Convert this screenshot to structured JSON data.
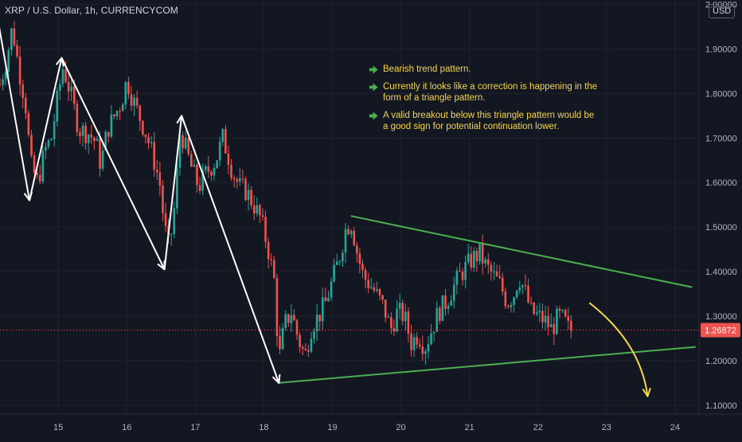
{
  "header": {
    "symbol_title": "XRP / U.S. Dollar, 1h, CURRENCYCOM",
    "currency": "USD"
  },
  "notes": [
    "Bearish trend pattern.",
    "Currently it looks like a correction is happening in the form of a triangle pattern.",
    "A valid breakout below this triangle pattern would be a good sign for potential continuation lower."
  ],
  "colors": {
    "background": "#131722",
    "bull": "#26a69a",
    "bear": "#ef5350",
    "trendline": "#4caf50",
    "note_text": "#f5d547",
    "projection_arrow": "#f5d547",
    "price_tag": "#ef5350",
    "wave_arrows": "#ffffff",
    "note_icon": "#4caf50"
  },
  "chart_data": {
    "type": "candlestick",
    "x_ticks": [
      "15",
      "16",
      "17",
      "18",
      "19",
      "20",
      "21",
      "22",
      "23",
      "24"
    ],
    "y_ticks": [
      "2.00000",
      "1.90000",
      "1.80000",
      "1.70000",
      "1.60000",
      "1.50000",
      "1.40000",
      "1.30000",
      "1.20000",
      "1.10000"
    ],
    "ylim": [
      1.08,
      2.01
    ],
    "xlim": [
      14.15,
      24.35
    ],
    "last_price": 1.26872,
    "last_price_label": "1.26872",
    "price_path": [
      [
        14.15,
        1.82
      ],
      [
        14.25,
        1.88
      ],
      [
        14.33,
        1.95
      ],
      [
        14.42,
        1.86
      ],
      [
        14.52,
        1.78
      ],
      [
        14.6,
        1.64
      ],
      [
        14.7,
        1.6
      ],
      [
        14.8,
        1.67
      ],
      [
        14.9,
        1.7
      ],
      [
        15.0,
        1.8
      ],
      [
        15.07,
        1.86
      ],
      [
        15.18,
        1.8
      ],
      [
        15.3,
        1.72
      ],
      [
        15.45,
        1.71
      ],
      [
        15.55,
        1.69
      ],
      [
        15.62,
        1.64
      ],
      [
        15.72,
        1.72
      ],
      [
        15.82,
        1.75
      ],
      [
        15.92,
        1.78
      ],
      [
        16.0,
        1.83
      ],
      [
        16.08,
        1.79
      ],
      [
        16.18,
        1.75
      ],
      [
        16.28,
        1.71
      ],
      [
        16.38,
        1.66
      ],
      [
        16.48,
        1.6
      ],
      [
        16.55,
        1.5
      ],
      [
        16.62,
        1.45
      ],
      [
        16.7,
        1.55
      ],
      [
        16.78,
        1.72
      ],
      [
        16.85,
        1.68
      ],
      [
        16.95,
        1.63
      ],
      [
        17.05,
        1.59
      ],
      [
        17.15,
        1.62
      ],
      [
        17.3,
        1.65
      ],
      [
        17.4,
        1.7
      ],
      [
        17.48,
        1.66
      ],
      [
        17.55,
        1.62
      ],
      [
        17.65,
        1.59
      ],
      [
        17.75,
        1.58
      ],
      [
        17.85,
        1.55
      ],
      [
        17.95,
        1.52
      ],
      [
        18.05,
        1.46
      ],
      [
        18.15,
        1.38
      ],
      [
        18.22,
        1.2
      ],
      [
        18.3,
        1.28
      ],
      [
        18.4,
        1.31
      ],
      [
        18.5,
        1.25
      ],
      [
        18.6,
        1.21
      ],
      [
        18.7,
        1.28
      ],
      [
        18.8,
        1.3
      ],
      [
        18.9,
        1.33
      ],
      [
        19.0,
        1.38
      ],
      [
        19.1,
        1.43
      ],
      [
        19.2,
        1.5
      ],
      [
        19.28,
        1.51
      ],
      [
        19.35,
        1.45
      ],
      [
        19.45,
        1.39
      ],
      [
        19.6,
        1.36
      ],
      [
        19.75,
        1.32
      ],
      [
        19.85,
        1.27
      ],
      [
        19.95,
        1.31
      ],
      [
        20.05,
        1.3
      ],
      [
        20.15,
        1.24
      ],
      [
        20.25,
        1.26
      ],
      [
        20.35,
        1.23
      ],
      [
        20.45,
        1.27
      ],
      [
        20.55,
        1.31
      ],
      [
        20.65,
        1.33
      ],
      [
        20.75,
        1.36
      ],
      [
        20.85,
        1.39
      ],
      [
        20.95,
        1.41
      ],
      [
        21.05,
        1.43
      ],
      [
        21.15,
        1.44
      ],
      [
        21.25,
        1.41
      ],
      [
        21.35,
        1.39
      ],
      [
        21.45,
        1.37
      ],
      [
        21.55,
        1.33
      ],
      [
        21.65,
        1.35
      ],
      [
        21.72,
        1.39
      ],
      [
        21.8,
        1.36
      ],
      [
        21.9,
        1.31
      ],
      [
        22.0,
        1.3
      ],
      [
        22.1,
        1.29
      ],
      [
        22.2,
        1.27
      ],
      [
        22.3,
        1.3
      ],
      [
        22.38,
        1.29
      ],
      [
        22.45,
        1.27
      ],
      [
        22.5,
        1.268
      ]
    ],
    "annotations": {
      "resistance_line": [
        [
          19.27,
          1.525
        ],
        [
          24.25,
          1.365
        ]
      ],
      "support_line": [
        [
          18.2,
          1.15
        ],
        [
          24.3,
          1.231
        ]
      ],
      "wave_arrows": [
        [
          [
            14.12,
            1.965
          ],
          [
            14.58,
            1.56
          ]
        ],
        [
          [
            14.58,
            1.56
          ],
          [
            15.05,
            1.88
          ]
        ],
        [
          [
            15.05,
            1.88
          ],
          [
            16.55,
            1.405
          ]
        ],
        [
          [
            16.55,
            1.405
          ],
          [
            16.8,
            1.75
          ]
        ],
        [
          [
            16.8,
            1.75
          ],
          [
            18.22,
            1.15
          ]
        ]
      ],
      "projection_arrow": [
        [
          22.75,
          1.33
        ],
        [
          23.5,
          1.24
        ],
        [
          23.6,
          1.12
        ]
      ]
    }
  }
}
